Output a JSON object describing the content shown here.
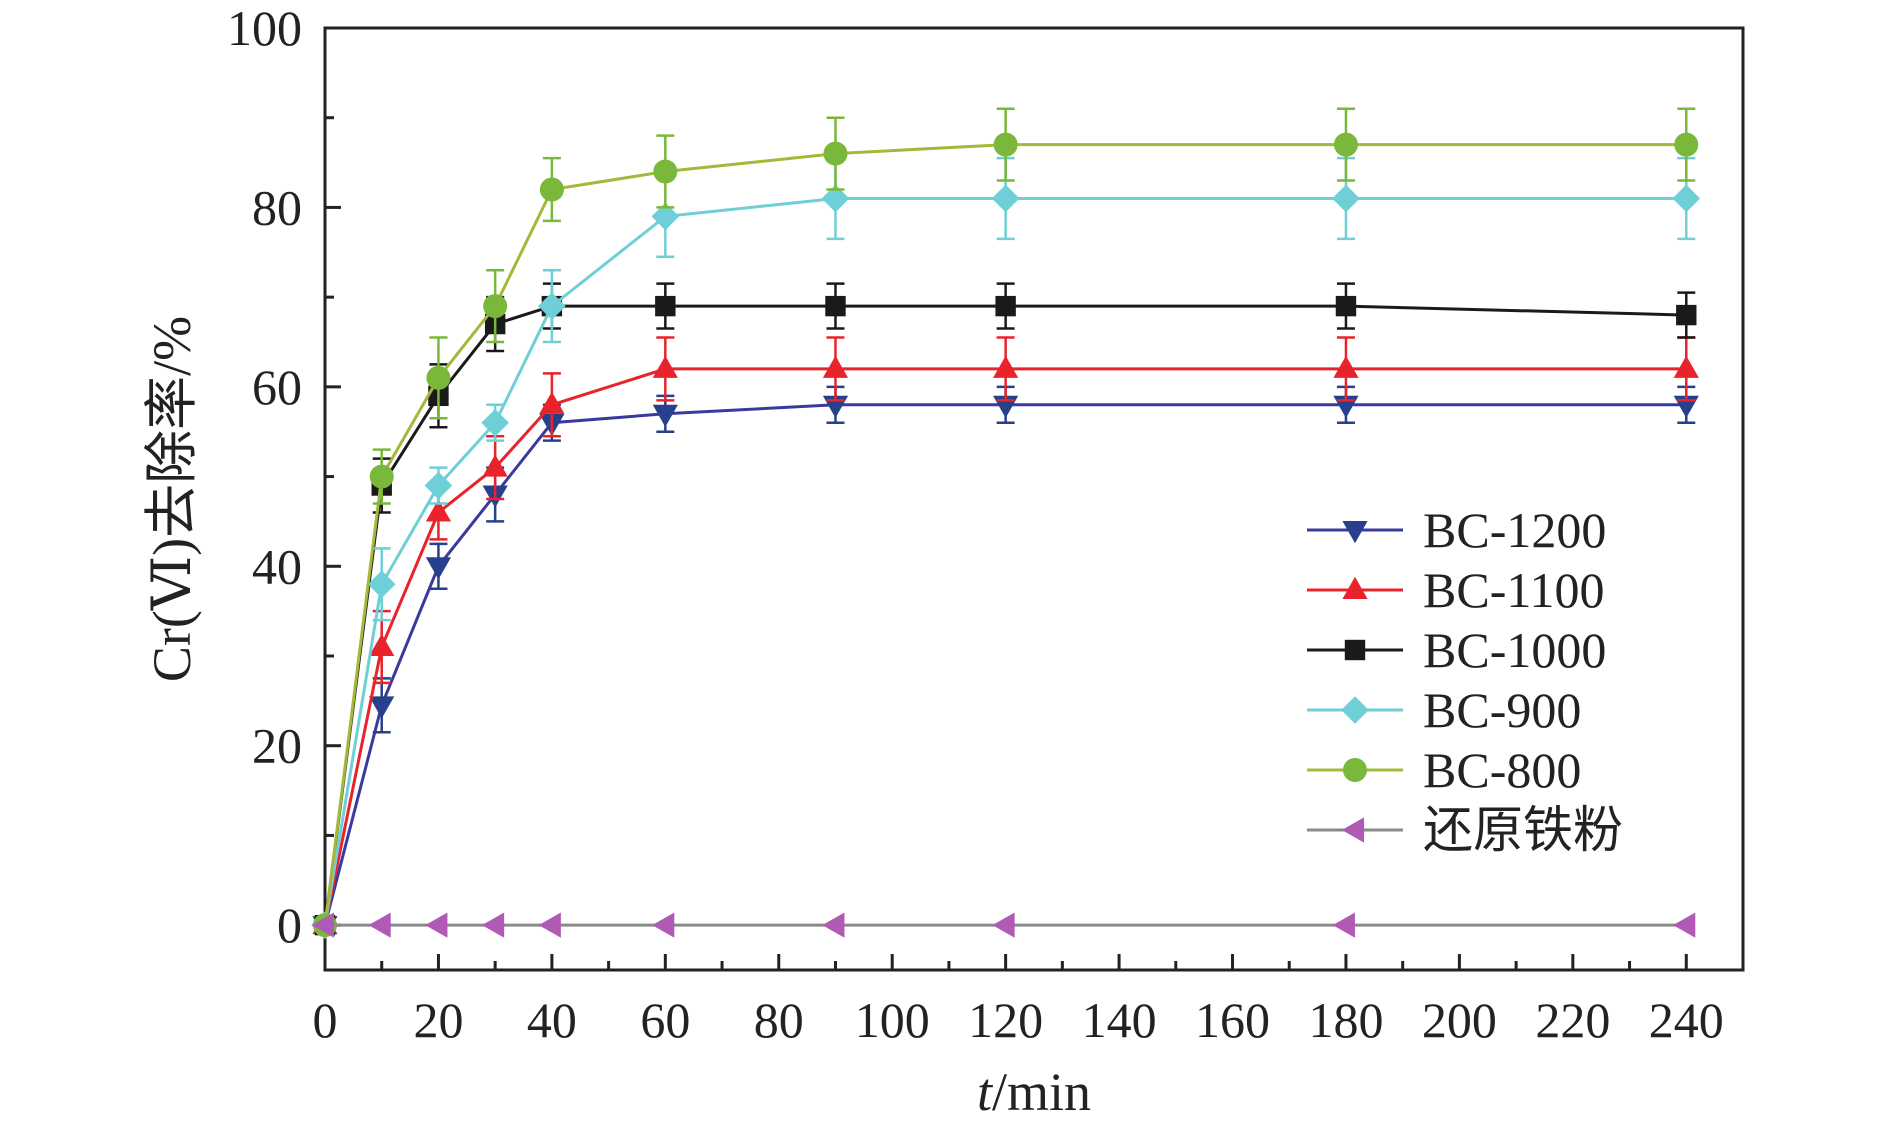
{
  "chart_data": {
    "type": "line",
    "x_label_italic": "t",
    "x_label_rest": "/min",
    "y_label": "Cr(Ⅵ)去除率/%",
    "xlim": [
      0,
      250
    ],
    "ylim": [
      -5,
      100
    ],
    "x_ticks": [
      0,
      20,
      40,
      60,
      80,
      100,
      120,
      140,
      160,
      180,
      200,
      220,
      240
    ],
    "y_ticks": [
      0,
      20,
      40,
      60,
      80,
      100
    ],
    "x": [
      0,
      10,
      20,
      30,
      40,
      60,
      90,
      120,
      180,
      240
    ],
    "grid": false,
    "legend_position": "right",
    "series": [
      {
        "name": "BC-1200",
        "marker": "triangle-down",
        "color": "#27408b",
        "line_color": "#3a3a9e",
        "values": [
          0,
          24.5,
          40,
          48,
          56,
          57,
          58,
          58,
          58,
          58
        ],
        "errors": [
          0,
          3,
          2.5,
          3,
          2,
          2,
          2,
          2,
          2,
          2
        ]
      },
      {
        "name": "BC-1100",
        "marker": "triangle-up",
        "color": "#e8232b",
        "line_color": "#e8232b",
        "values": [
          0,
          31,
          46,
          51,
          58,
          62,
          62,
          62,
          62,
          62
        ],
        "errors": [
          0,
          4,
          3,
          3.5,
          3.5,
          3.5,
          3.5,
          3.5,
          3.5,
          3.5
        ]
      },
      {
        "name": "BC-1000",
        "marker": "square",
        "color": "#1a1a1a",
        "line_color": "#1a1a1a",
        "values": [
          0,
          49,
          59,
          67,
          69,
          69,
          69,
          69,
          69,
          68
        ],
        "errors": [
          0,
          3,
          3.5,
          3,
          2.5,
          2.5,
          2.5,
          2.5,
          2.5,
          2.5
        ]
      },
      {
        "name": "BC-900",
        "marker": "diamond",
        "color": "#6ecfd6",
        "line_color": "#6ecfd6",
        "values": [
          0,
          38,
          49,
          56,
          69,
          79,
          81,
          81,
          81,
          81
        ],
        "errors": [
          0,
          4,
          2,
          2,
          4,
          4.5,
          4.5,
          4.5,
          4.5,
          4.5
        ]
      },
      {
        "name": "BC-800",
        "marker": "circle",
        "color": "#79b83a",
        "line_color": "#a4b83a",
        "values": [
          0,
          50,
          61,
          69,
          82,
          84,
          86,
          87,
          87,
          87
        ],
        "errors": [
          0,
          3,
          4.5,
          4,
          3.5,
          4,
          4,
          4,
          4,
          4
        ]
      },
      {
        "name": "还原铁粉",
        "marker": "triangle-left",
        "color": "#b15ab5",
        "line_color": "#8a8a8a",
        "values": [
          0,
          0,
          0,
          0,
          0,
          0,
          0,
          0,
          0,
          0
        ],
        "errors": [
          0,
          0,
          0,
          0,
          0,
          0,
          0,
          0,
          0,
          0
        ]
      }
    ]
  }
}
